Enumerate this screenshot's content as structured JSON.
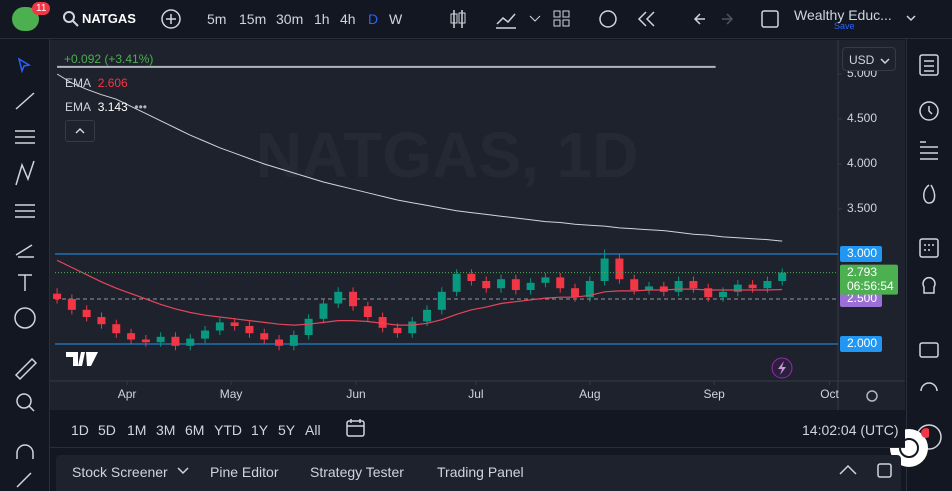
{
  "toolbar": {
    "badge": "11",
    "symbol": "NATGAS",
    "intervals": [
      "5m",
      "15m",
      "30m",
      "1h",
      "4h",
      "D",
      "W"
    ],
    "account": "Wealthy Educ...",
    "save": "Save"
  },
  "chart_data": {
    "type": "candlestick",
    "watermark": "NATGAS, 1D",
    "change": "+0.092 (+3.41%)",
    "currency": "USD",
    "up_color": "#089981",
    "down_color": "#f23645",
    "candles": [
      [
        2.56,
        2.62,
        2.45,
        2.5
      ],
      [
        2.5,
        2.55,
        2.33,
        2.38
      ],
      [
        2.38,
        2.43,
        2.25,
        2.3
      ],
      [
        2.3,
        2.35,
        2.17,
        2.22
      ],
      [
        2.22,
        2.27,
        2.07,
        2.12
      ],
      [
        2.12,
        2.17,
        2.0,
        2.05
      ],
      [
        2.05,
        2.1,
        1.97,
        2.02
      ],
      [
        2.02,
        2.13,
        1.97,
        2.08
      ],
      [
        2.08,
        2.13,
        1.93,
        1.98
      ],
      [
        1.98,
        2.11,
        1.93,
        2.06
      ],
      [
        2.06,
        2.2,
        2.01,
        2.15
      ],
      [
        2.15,
        2.29,
        2.1,
        2.24
      ],
      [
        2.24,
        2.29,
        2.15,
        2.2
      ],
      [
        2.2,
        2.25,
        2.07,
        2.12
      ],
      [
        2.12,
        2.17,
        2.0,
        2.05
      ],
      [
        2.05,
        2.1,
        1.93,
        1.98
      ],
      [
        1.98,
        2.15,
        1.93,
        2.1
      ],
      [
        2.1,
        2.33,
        2.05,
        2.28
      ],
      [
        2.28,
        2.5,
        2.23,
        2.45
      ],
      [
        2.45,
        2.63,
        2.4,
        2.58
      ],
      [
        2.58,
        2.63,
        2.37,
        2.42
      ],
      [
        2.42,
        2.47,
        2.25,
        2.3
      ],
      [
        2.3,
        2.35,
        2.13,
        2.18
      ],
      [
        2.18,
        2.23,
        2.07,
        2.12
      ],
      [
        2.12,
        2.3,
        2.07,
        2.25
      ],
      [
        2.25,
        2.43,
        2.2,
        2.38
      ],
      [
        2.38,
        2.63,
        2.33,
        2.58
      ],
      [
        2.58,
        2.83,
        2.53,
        2.78
      ],
      [
        2.78,
        2.83,
        2.65,
        2.7
      ],
      [
        2.7,
        2.75,
        2.57,
        2.62
      ],
      [
        2.62,
        2.77,
        2.57,
        2.72
      ],
      [
        2.72,
        2.77,
        2.55,
        2.6
      ],
      [
        2.6,
        2.73,
        2.55,
        2.68
      ],
      [
        2.68,
        2.79,
        2.63,
        2.74
      ],
      [
        2.74,
        2.79,
        2.57,
        2.62
      ],
      [
        2.62,
        2.67,
        2.47,
        2.52
      ],
      [
        2.52,
        2.75,
        2.47,
        2.7
      ],
      [
        2.7,
        3.05,
        2.65,
        2.95
      ],
      [
        2.95,
        3.0,
        2.67,
        2.72
      ],
      [
        2.72,
        2.77,
        2.55,
        2.6
      ],
      [
        2.6,
        2.69,
        2.55,
        2.64
      ],
      [
        2.64,
        2.69,
        2.53,
        2.58
      ],
      [
        2.58,
        2.75,
        2.53,
        2.7
      ],
      [
        2.7,
        2.75,
        2.57,
        2.62
      ],
      [
        2.62,
        2.67,
        2.47,
        2.52
      ],
      [
        2.52,
        2.63,
        2.47,
        2.58
      ],
      [
        2.58,
        2.71,
        2.53,
        2.66
      ],
      [
        2.66,
        2.71,
        2.57,
        2.62
      ],
      [
        2.62,
        2.75,
        2.57,
        2.7
      ],
      [
        2.7,
        2.84,
        2.65,
        2.793
      ]
    ],
    "series": [
      {
        "name": "EMA",
        "color": "#e5455a",
        "values": [
          2.93,
          2.85,
          2.77,
          2.69,
          2.62,
          2.56,
          2.5,
          2.44,
          2.39,
          2.35,
          2.32,
          2.3,
          2.28,
          2.26,
          2.24,
          2.22,
          2.21,
          2.22,
          2.24,
          2.26,
          2.26,
          2.25,
          2.23,
          2.21,
          2.21,
          2.23,
          2.27,
          2.33,
          2.38,
          2.41,
          2.45,
          2.47,
          2.49,
          2.51,
          2.52,
          2.52,
          2.54,
          2.58,
          2.59,
          2.59,
          2.6,
          2.6,
          2.61,
          2.61,
          2.6,
          2.6,
          2.6,
          2.6,
          2.6,
          2.606
        ]
      },
      {
        "name": "EMA",
        "color": "#d1d4dc",
        "values": [
          5.0,
          4.9,
          4.83,
          4.77,
          4.72,
          4.64,
          4.56,
          4.48,
          4.4,
          4.32,
          4.25,
          4.18,
          4.12,
          4.06,
          4.0,
          3.95,
          3.9,
          3.85,
          3.8,
          3.76,
          3.72,
          3.68,
          3.64,
          3.6,
          3.57,
          3.54,
          3.51,
          3.48,
          3.46,
          3.44,
          3.42,
          3.4,
          3.38,
          3.36,
          3.35,
          3.33,
          3.32,
          3.31,
          3.29,
          3.28,
          3.27,
          3.26,
          3.24,
          3.22,
          3.21,
          3.19,
          3.18,
          3.17,
          3.16,
          3.143
        ]
      }
    ],
    "ylim": [
      1.589,
      5.378
    ],
    "yticks": [
      {
        "value": 5,
        "label": "5.000"
      },
      {
        "value": 4.5,
        "label": "4.500"
      },
      {
        "value": 4,
        "label": "4.000"
      },
      {
        "value": 3.5,
        "label": "3.500"
      }
    ],
    "xlim": [
      -0.14,
      52.77
    ],
    "xticks": [
      {
        "value": 4.73,
        "label": "Apr"
      },
      {
        "value": 11.76,
        "label": "May"
      },
      {
        "value": 20.2,
        "label": "Jun"
      },
      {
        "value": 28.3,
        "label": "Jul"
      },
      {
        "value": 36.0,
        "label": "Aug"
      },
      {
        "value": 44.4,
        "label": "Sep"
      },
      {
        "value": 52.2,
        "label": "Oct"
      }
    ],
    "price_lines": [
      {
        "value": 3,
        "label": "3.000",
        "color": "#2196f3",
        "style": "solid"
      },
      {
        "value": 2.5,
        "label": "2.500",
        "color": "#9c6fd6",
        "style": "dashed"
      },
      {
        "value": 2,
        "label": "2.000",
        "color": "#2196f3",
        "style": "solid"
      }
    ],
    "top_line": {
      "value": 5.08,
      "x": [
        0,
        44.5
      ],
      "color": "#b2b5be"
    },
    "last_price": {
      "value": 2.793,
      "countdown": "06:56:54",
      "color": "#4caf50"
    }
  },
  "range_bar": {
    "ranges": [
      "1D",
      "5D",
      "1M",
      "3M",
      "6M",
      "YTD",
      "1Y",
      "5Y",
      "All"
    ],
    "clock": "14:02:04 (UTC)"
  },
  "bottom_panel": {
    "tabs": [
      "Stock Screener",
      "Pine Editor",
      "Strategy Tester",
      "Trading Panel"
    ]
  }
}
